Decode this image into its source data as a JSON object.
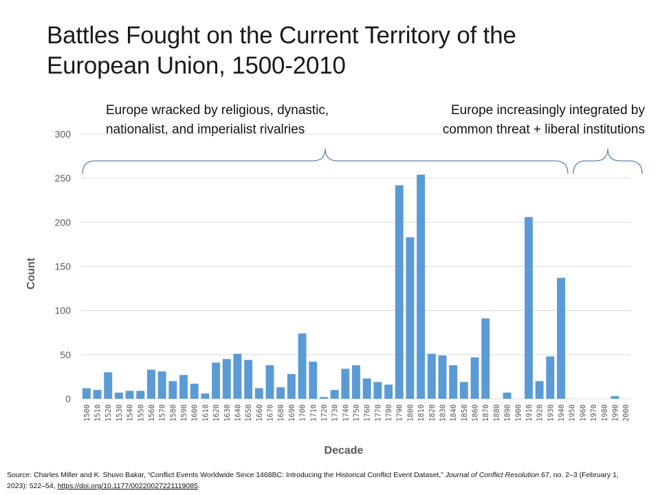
{
  "slide": {
    "title": "Battles Fought on the Current Territory of the European Union, 1500-2010",
    "annotations": {
      "left": [
        "Europe wracked by religious, dynastic,",
        "nationalist, and imperialist rivalries"
      ],
      "right": [
        "Europe increasingly integrated by",
        "common threat + liberal institutions"
      ]
    },
    "source": {
      "prefix": "Source: Charles Miller and K. Shuvo Bakar, “Conflict Events Worldwide Since 1468BC: Introducing the Historical Conflict Event Dataset,” ",
      "journal": "Journal of Conflict Resolution",
      "suffix": " 67, no. 2–3 (February 1, 2023): 522–54, ",
      "link": "https://doi.org/10.1177/00220027221119085",
      "end": "."
    }
  },
  "chart_data": {
    "type": "bar",
    "title": "Battles Fought on the Current Territory of the European Union, 1500-2010",
    "xlabel": "Decade",
    "ylabel": "Count",
    "ylim": [
      0,
      300
    ],
    "yticks": [
      0,
      50,
      100,
      150,
      200,
      250,
      300
    ],
    "grid": true,
    "color": "#5B9BD5",
    "categories": [
      "1500",
      "1510",
      "1520",
      "1530",
      "1540",
      "1550",
      "1560",
      "1570",
      "1580",
      "1590",
      "1600",
      "1610",
      "1620",
      "1630",
      "1640",
      "1650",
      "1660",
      "1670",
      "1680",
      "1690",
      "1700",
      "1710",
      "1720",
      "1730",
      "1740",
      "1750",
      "1760",
      "1770",
      "1780",
      "1790",
      "1800",
      "1810",
      "1820",
      "1830",
      "1840",
      "1850",
      "1860",
      "1870",
      "1880",
      "1890",
      "1900",
      "1910",
      "1920",
      "1930",
      "1940",
      "1950",
      "1960",
      "1970",
      "1980",
      "1990",
      "2000"
    ],
    "values": [
      12,
      10,
      30,
      7,
      9,
      9,
      33,
      31,
      20,
      27,
      17,
      6,
      41,
      45,
      51,
      44,
      12,
      38,
      13,
      28,
      74,
      42,
      2,
      10,
      34,
      38,
      23,
      19,
      16,
      242,
      183,
      254,
      51,
      49,
      38,
      19,
      47,
      91,
      0,
      7,
      0,
      206,
      20,
      48,
      137,
      0,
      0,
      0,
      0,
      3,
      0
    ],
    "brackets": [
      {
        "from": "1500",
        "to": "1950",
        "label_ref": "left"
      },
      {
        "from": "1950",
        "to": "2000",
        "label_ref": "right"
      }
    ]
  }
}
